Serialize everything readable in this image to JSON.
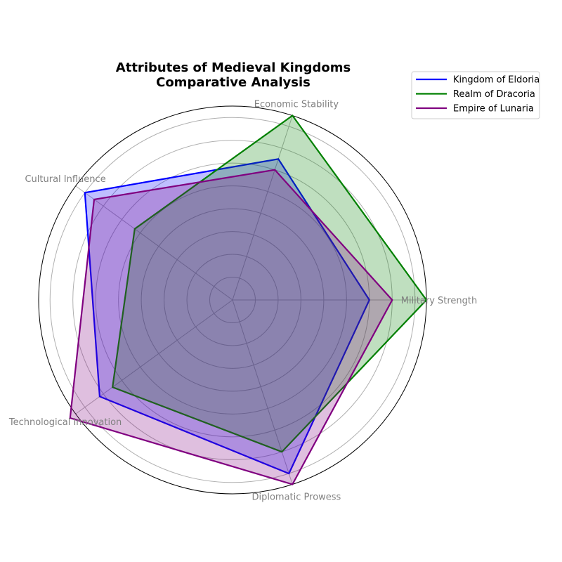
{
  "chart_data": {
    "type": "radar",
    "title_lines": [
      "Attributes of Medieval Kingdoms",
      "Comparative Analysis"
    ],
    "categories": [
      "Military Strength",
      "Economic Stability",
      "Cultural Influence",
      "Technological Innovation",
      "Diplomatic Prowess"
    ],
    "rmax": 85,
    "gridlines": [
      10,
      20,
      30,
      40,
      50,
      60,
      70,
      80
    ],
    "grid": true,
    "series": [
      {
        "name": "Kingdom of Eldoria",
        "color": "#0000ff",
        "values": [
          60,
          65,
          80,
          72,
          80
        ]
      },
      {
        "name": "Realm of Dracoria",
        "color": "#008000",
        "values": [
          85,
          85,
          53,
          65,
          70
        ]
      },
      {
        "name": "Empire of Lunaria",
        "color": "#800080",
        "values": [
          70,
          60,
          75,
          88,
          85
        ]
      }
    ],
    "legend_position": "top-right"
  }
}
